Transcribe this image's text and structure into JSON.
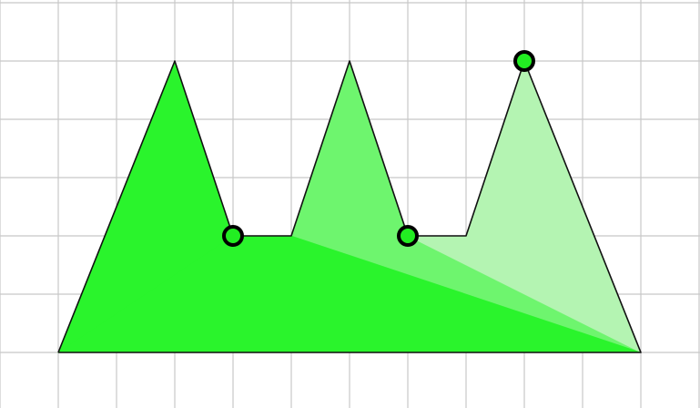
{
  "diagram": {
    "grid": {
      "rows": 7,
      "cols": 12,
      "color": "#c8c8c8"
    },
    "outline_color": "#111111",
    "vertices": [
      [
        0,
        5
      ],
      [
        2,
        0
      ],
      [
        3,
        3
      ],
      [
        4,
        3
      ],
      [
        5,
        0
      ],
      [
        6,
        3
      ],
      [
        7,
        3
      ],
      [
        8,
        0
      ],
      [
        10,
        5
      ]
    ],
    "regions": [
      {
        "name": "main-triangle-region",
        "points": [
          [
            0,
            5
          ],
          [
            2,
            0
          ],
          [
            3,
            3
          ],
          [
            10,
            5
          ]
        ],
        "color": "#2af42c"
      },
      {
        "name": "middle-fan-region",
        "points": [
          [
            3,
            3
          ],
          [
            4,
            3
          ],
          [
            5,
            0
          ],
          [
            6,
            3
          ],
          [
            10,
            5
          ]
        ],
        "color": "#6ef56e"
      },
      {
        "name": "right-fan-region",
        "points": [
          [
            6,
            3
          ],
          [
            7,
            3
          ],
          [
            8,
            0
          ],
          [
            10,
            5
          ]
        ],
        "color": "#b4f4b2"
      },
      {
        "name": "lower-band-region",
        "points": [
          [
            0,
            5
          ],
          [
            3,
            3
          ],
          [
            4,
            3
          ],
          [
            10,
            5
          ]
        ],
        "color": "#2af42c"
      }
    ],
    "handles": [
      {
        "name": "vertex-handle-left",
        "at": [
          3,
          3
        ]
      },
      {
        "name": "vertex-handle-middle",
        "at": [
          6,
          3
        ]
      },
      {
        "name": "vertex-handle-top",
        "at": [
          8,
          0
        ]
      }
    ],
    "handle_fill": "#22ee22"
  }
}
